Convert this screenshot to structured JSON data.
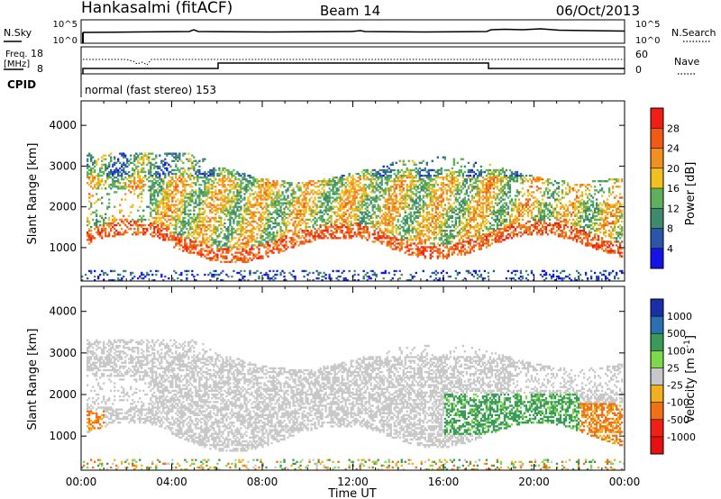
{
  "header": {
    "station": "Hankasalmi (fitACF)",
    "beam": "Beam 14",
    "date": "06/Oct/2013"
  },
  "status_panels": {
    "nsky_label": "N.Sky",
    "nsearch_label": "N.Search",
    "count_ticks": [
      "10^5",
      "10^0"
    ],
    "freq_label_line1": "Freq.",
    "freq_label_line2": "[MHz]",
    "freq_ticks": [
      "18",
      "8"
    ],
    "nave_label": "Nave",
    "nave_ticks": [
      "60",
      "0"
    ],
    "cpid_label": "CPID",
    "cpid_text": "normal (fast stereo) 153"
  },
  "chart_data": [
    {
      "type": "heatmap",
      "title": "",
      "ylabel": "Slant Range [km]",
      "xlabel": "",
      "x_range_hours": [
        0,
        24
      ],
      "ylim": [
        180,
        4600
      ],
      "yticks": [
        1000,
        2000,
        3000,
        4000
      ],
      "ytick_labels": [
        "1000",
        "2000",
        "3000",
        "4000"
      ],
      "colorbar": {
        "label": "Power [dB]",
        "ticks": [
          "4",
          "8",
          "12",
          "16",
          "20",
          "24",
          "28"
        ],
        "colors": [
          "#1414e6",
          "#2b55a8",
          "#3d8a6e",
          "#5fb05a",
          "#f0c020",
          "#f09020",
          "#f05a14",
          "#f01e14"
        ]
      }
    },
    {
      "type": "heatmap",
      "title": "",
      "ylabel": "Slant Range [km]",
      "xlabel": "Time UT",
      "x_range_hours": [
        0,
        24
      ],
      "ylim": [
        180,
        4600
      ],
      "yticks": [
        1000,
        2000,
        3000,
        4000
      ],
      "ytick_labels": [
        "1000",
        "2000",
        "3000",
        "4000"
      ],
      "xtick_labels": [
        "00:00",
        "04:00",
        "08:00",
        "12:00",
        "16:00",
        "20:00",
        "00:00"
      ],
      "colorbar": {
        "label": "Velocity [m s",
        "label_sup": "-1",
        "ticks": [
          "1000",
          "500",
          "100",
          "25",
          "-25",
          "-100",
          "-500",
          "-1000"
        ],
        "colors": [
          "#1a2ea8",
          "#2b70b0",
          "#3a9a5a",
          "#7dd84a",
          "#c8c8c8",
          "#f0b020",
          "#f07014",
          "#f02014",
          "#e61010"
        ]
      }
    }
  ]
}
